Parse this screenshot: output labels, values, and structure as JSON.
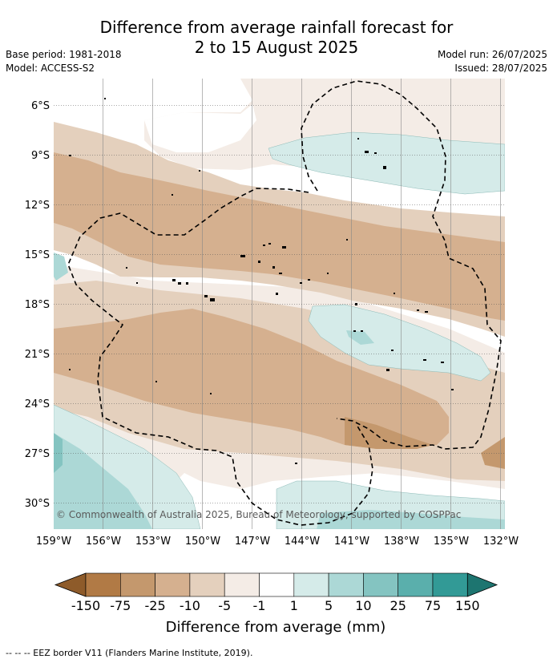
{
  "title_line1": "Difference from average rainfall forecast for",
  "title_line2": "2 to 15 August 2025",
  "base_period": "Base period: 1981-2018",
  "model": "Model: ACCESS-S2",
  "model_run": "Model run: 26/07/2025",
  "issued": "Issued: 28/07/2025",
  "copyright": "© Commonwealth of Australia 2025, Bureau of Meteorology, supported by COSPPac",
  "lat_labels": [
    "6°S",
    "9°S",
    "12°S",
    "15°S",
    "18°S",
    "21°S",
    "24°S",
    "27°S",
    "30°S"
  ],
  "lon_labels": [
    "159°W",
    "156°W",
    "153°W",
    "150°W",
    "147°W",
    "144°W",
    "141°W",
    "138°W",
    "135°W",
    "132°W"
  ],
  "colorbar": {
    "title": "Difference from average (mm)",
    "ticks": [
      "-150",
      "-75",
      "-25",
      "-10",
      "-5",
      "-1",
      "1",
      "5",
      "10",
      "25",
      "75",
      "150"
    ],
    "colors": [
      "#8e5b2a",
      "#b17a45",
      "#c4986d",
      "#d5b08f",
      "#e4d0bd",
      "#f4ece6",
      "#ffffff",
      "#d5ebe9",
      "#acd8d6",
      "#84c4c1",
      "#5aafac",
      "#329a96",
      "#1d7570"
    ]
  },
  "footnote": "--  --  -- EEZ border V11 (Flanders Marine Institute, 2019)."
}
